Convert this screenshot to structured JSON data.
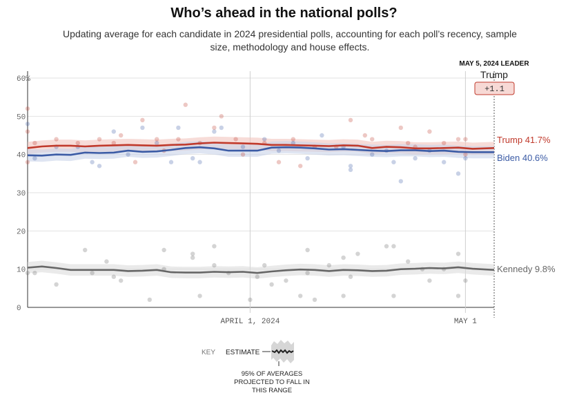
{
  "header": {
    "title": "Who’s ahead in the national polls?",
    "subtitle": "Updating average for each candidate in 2024 presidential polls, accounting for each poll’s recency, sample size, methodology and house effects."
  },
  "leader_box": {
    "label": "MAY 5, 2024 LEADER",
    "name": "Trump",
    "margin": "+1.1"
  },
  "key": {
    "label": "KEY",
    "estimate": "ESTIMATE",
    "range_note_lines": [
      "95% OF AVERAGES",
      "PROJECTED TO FALL IN",
      "THIS RANGE"
    ]
  },
  "colors": {
    "trump": "#c0392b",
    "biden": "#3b5ba5",
    "kennedy": "#666666"
  },
  "chart_data": {
    "type": "line",
    "title": "Who’s ahead in the national polls?",
    "x_start": "2024-03-01",
    "x_end": "2024-05-05",
    "ylim": [
      0,
      60
    ],
    "y_ticks": [
      {
        "value": 0,
        "label": "0"
      },
      {
        "value": 10,
        "label": "10"
      },
      {
        "value": 20,
        "label": "20"
      },
      {
        "value": 30,
        "label": "30"
      },
      {
        "value": 40,
        "label": "40"
      },
      {
        "value": 50,
        "label": "50"
      },
      {
        "value": 60,
        "label": "60%"
      }
    ],
    "x_ticks": [
      {
        "date": "2024-04-01",
        "label": "APRIL 1, 2024"
      },
      {
        "date": "2024-05-01",
        "label": "MAY 1"
      }
    ],
    "grid": true,
    "series": [
      {
        "name": "Trump",
        "end_label": "Trump 41.7%",
        "color": "#c0392b",
        "band_color": "#f2c4be",
        "band_halfwidth": 1.6,
        "points": [
          [
            "2024-03-01",
            41.7
          ],
          [
            "2024-03-03",
            42.1
          ],
          [
            "2024-03-05",
            42.3
          ],
          [
            "2024-03-07",
            42.3
          ],
          [
            "2024-03-09",
            42.1
          ],
          [
            "2024-03-11",
            42.3
          ],
          [
            "2024-03-13",
            42.4
          ],
          [
            "2024-03-15",
            42.5
          ],
          [
            "2024-03-17",
            42.4
          ],
          [
            "2024-03-19",
            42.3
          ],
          [
            "2024-03-21",
            42.5
          ],
          [
            "2024-03-23",
            42.6
          ],
          [
            "2024-03-25",
            42.9
          ],
          [
            "2024-03-27",
            43.1
          ],
          [
            "2024-03-29",
            43.0
          ],
          [
            "2024-03-31",
            42.9
          ],
          [
            "2024-04-02",
            42.8
          ],
          [
            "2024-04-04",
            42.5
          ],
          [
            "2024-04-06",
            42.5
          ],
          [
            "2024-04-08",
            42.4
          ],
          [
            "2024-04-10",
            42.3
          ],
          [
            "2024-04-12",
            42.2
          ],
          [
            "2024-04-14",
            42.4
          ],
          [
            "2024-04-16",
            42.3
          ],
          [
            "2024-04-18",
            41.7
          ],
          [
            "2024-04-20",
            42.0
          ],
          [
            "2024-04-22",
            41.9
          ],
          [
            "2024-04-24",
            41.6
          ],
          [
            "2024-04-26",
            41.6
          ],
          [
            "2024-04-28",
            41.7
          ],
          [
            "2024-04-30",
            41.8
          ],
          [
            "2024-05-02",
            41.5
          ],
          [
            "2024-05-05",
            41.7
          ]
        ]
      },
      {
        "name": "Biden",
        "end_label": "Biden 40.6%",
        "color": "#3b5ba5",
        "band_color": "#c9d3ea",
        "band_halfwidth": 1.6,
        "points": [
          [
            "2024-03-01",
            39.8
          ],
          [
            "2024-03-03",
            39.7
          ],
          [
            "2024-03-05",
            40.0
          ],
          [
            "2024-03-07",
            39.9
          ],
          [
            "2024-03-09",
            40.5
          ],
          [
            "2024-03-11",
            40.4
          ],
          [
            "2024-03-13",
            40.5
          ],
          [
            "2024-03-15",
            41.0
          ],
          [
            "2024-03-17",
            40.7
          ],
          [
            "2024-03-19",
            40.8
          ],
          [
            "2024-03-21",
            41.2
          ],
          [
            "2024-03-23",
            41.7
          ],
          [
            "2024-03-25",
            41.9
          ],
          [
            "2024-03-27",
            41.6
          ],
          [
            "2024-03-29",
            41.0
          ],
          [
            "2024-03-31",
            41.0
          ],
          [
            "2024-04-02",
            41.0
          ],
          [
            "2024-04-04",
            41.8
          ],
          [
            "2024-04-06",
            41.9
          ],
          [
            "2024-04-08",
            41.8
          ],
          [
            "2024-04-10",
            41.6
          ],
          [
            "2024-04-12",
            41.3
          ],
          [
            "2024-04-14",
            41.4
          ],
          [
            "2024-04-16",
            41.2
          ],
          [
            "2024-04-18",
            41.0
          ],
          [
            "2024-04-20",
            40.9
          ],
          [
            "2024-04-22",
            41.1
          ],
          [
            "2024-04-24",
            41.1
          ],
          [
            "2024-04-26",
            40.9
          ],
          [
            "2024-04-28",
            41.0
          ],
          [
            "2024-04-30",
            40.7
          ],
          [
            "2024-05-02",
            40.6
          ],
          [
            "2024-05-05",
            40.6
          ]
        ]
      },
      {
        "name": "Kennedy",
        "end_label": "Kennedy 9.8%",
        "color": "#666666",
        "band_color": "#dcdcdc",
        "band_halfwidth": 1.5,
        "points": [
          [
            "2024-03-01",
            10.4
          ],
          [
            "2024-03-03",
            10.7
          ],
          [
            "2024-03-05",
            10.3
          ],
          [
            "2024-03-07",
            9.8
          ],
          [
            "2024-03-09",
            9.8
          ],
          [
            "2024-03-11",
            9.8
          ],
          [
            "2024-03-13",
            9.8
          ],
          [
            "2024-03-15",
            9.5
          ],
          [
            "2024-03-17",
            9.6
          ],
          [
            "2024-03-19",
            9.8
          ],
          [
            "2024-03-21",
            9.2
          ],
          [
            "2024-03-23",
            9.1
          ],
          [
            "2024-03-25",
            9.1
          ],
          [
            "2024-03-27",
            9.3
          ],
          [
            "2024-03-29",
            9.2
          ],
          [
            "2024-03-31",
            9.3
          ],
          [
            "2024-04-02",
            9.0
          ],
          [
            "2024-04-04",
            9.4
          ],
          [
            "2024-04-06",
            9.7
          ],
          [
            "2024-04-08",
            9.9
          ],
          [
            "2024-04-10",
            9.8
          ],
          [
            "2024-04-12",
            9.5
          ],
          [
            "2024-04-14",
            9.8
          ],
          [
            "2024-04-16",
            9.7
          ],
          [
            "2024-04-18",
            9.5
          ],
          [
            "2024-04-20",
            9.6
          ],
          [
            "2024-04-22",
            10.0
          ],
          [
            "2024-04-24",
            10.1
          ],
          [
            "2024-04-26",
            10.3
          ],
          [
            "2024-04-28",
            10.2
          ],
          [
            "2024-04-30",
            10.5
          ],
          [
            "2024-05-02",
            10.1
          ],
          [
            "2024-05-05",
            9.8
          ]
        ]
      }
    ],
    "poll_dots": [
      {
        "series": "Trump",
        "points": [
          [
            "2024-03-01",
            52
          ],
          [
            "2024-03-01",
            46
          ],
          [
            "2024-03-01",
            38
          ],
          [
            "2024-03-02",
            43
          ],
          [
            "2024-03-05",
            44
          ],
          [
            "2024-03-08",
            43
          ],
          [
            "2024-03-11",
            44
          ],
          [
            "2024-03-13",
            43
          ],
          [
            "2024-03-14",
            45
          ],
          [
            "2024-03-16",
            38
          ],
          [
            "2024-03-17",
            49
          ],
          [
            "2024-03-19",
            44
          ],
          [
            "2024-03-20",
            41
          ],
          [
            "2024-03-22",
            44
          ],
          [
            "2024-03-23",
            53
          ],
          [
            "2024-03-25",
            43
          ],
          [
            "2024-03-27",
            47
          ],
          [
            "2024-03-28",
            50
          ],
          [
            "2024-03-30",
            44
          ],
          [
            "2024-03-31",
            40
          ],
          [
            "2024-04-03",
            43
          ],
          [
            "2024-04-05",
            38
          ],
          [
            "2024-04-07",
            44
          ],
          [
            "2024-04-08",
            37
          ],
          [
            "2024-04-10",
            42
          ],
          [
            "2024-04-13",
            42
          ],
          [
            "2024-04-15",
            49
          ],
          [
            "2024-04-17",
            45
          ],
          [
            "2024-04-18",
            44
          ],
          [
            "2024-04-22",
            47
          ],
          [
            "2024-04-23",
            43
          ],
          [
            "2024-04-24",
            42
          ],
          [
            "2024-04-26",
            46
          ],
          [
            "2024-04-28",
            43
          ],
          [
            "2024-04-30",
            44
          ],
          [
            "2024-05-01",
            44
          ],
          [
            "2024-05-01",
            40
          ]
        ]
      },
      {
        "series": "Biden",
        "points": [
          [
            "2024-03-01",
            48
          ],
          [
            "2024-03-02",
            39
          ],
          [
            "2024-03-05",
            42
          ],
          [
            "2024-03-08",
            42
          ],
          [
            "2024-03-10",
            38
          ],
          [
            "2024-03-11",
            37
          ],
          [
            "2024-03-13",
            46
          ],
          [
            "2024-03-15",
            40
          ],
          [
            "2024-03-17",
            47
          ],
          [
            "2024-03-19",
            43
          ],
          [
            "2024-03-21",
            38
          ],
          [
            "2024-03-22",
            47
          ],
          [
            "2024-03-24",
            39
          ],
          [
            "2024-03-25",
            38
          ],
          [
            "2024-03-27",
            46
          ],
          [
            "2024-03-28",
            47
          ],
          [
            "2024-03-31",
            42
          ],
          [
            "2024-04-03",
            44
          ],
          [
            "2024-04-05",
            41
          ],
          [
            "2024-04-07",
            43
          ],
          [
            "2024-04-09",
            39
          ],
          [
            "2024-04-11",
            45
          ],
          [
            "2024-04-14",
            42
          ],
          [
            "2024-04-15",
            37
          ],
          [
            "2024-04-15",
            36
          ],
          [
            "2024-04-18",
            40
          ],
          [
            "2024-04-20",
            41
          ],
          [
            "2024-04-21",
            38
          ],
          [
            "2024-04-22",
            33
          ],
          [
            "2024-04-24",
            39
          ],
          [
            "2024-04-26",
            41
          ],
          [
            "2024-04-28",
            38
          ],
          [
            "2024-04-30",
            35
          ],
          [
            "2024-05-01",
            39
          ]
        ]
      },
      {
        "series": "Kennedy",
        "points": [
          [
            "2024-03-01",
            9
          ],
          [
            "2024-03-02",
            9
          ],
          [
            "2024-03-05",
            6
          ],
          [
            "2024-03-09",
            15
          ],
          [
            "2024-03-10",
            9
          ],
          [
            "2024-03-12",
            12
          ],
          [
            "2024-03-13",
            8
          ],
          [
            "2024-03-14",
            7
          ],
          [
            "2024-03-18",
            2
          ],
          [
            "2024-03-20",
            15
          ],
          [
            "2024-03-20",
            10
          ],
          [
            "2024-03-24",
            14
          ],
          [
            "2024-03-24",
            13
          ],
          [
            "2024-03-25",
            3
          ],
          [
            "2024-03-27",
            16
          ],
          [
            "2024-03-27",
            11
          ],
          [
            "2024-03-29",
            9
          ],
          [
            "2024-04-01",
            2
          ],
          [
            "2024-04-02",
            8
          ],
          [
            "2024-04-03",
            11
          ],
          [
            "2024-04-04",
            6
          ],
          [
            "2024-04-06",
            7
          ],
          [
            "2024-04-08",
            3
          ],
          [
            "2024-04-09",
            15
          ],
          [
            "2024-04-09",
            9
          ],
          [
            "2024-04-10",
            2
          ],
          [
            "2024-04-12",
            11
          ],
          [
            "2024-04-14",
            3
          ],
          [
            "2024-04-14",
            13
          ],
          [
            "2024-04-15",
            8
          ],
          [
            "2024-04-16",
            14
          ],
          [
            "2024-04-20",
            16
          ],
          [
            "2024-04-21",
            3
          ],
          [
            "2024-04-21",
            16
          ],
          [
            "2024-04-23",
            12
          ],
          [
            "2024-04-25",
            10
          ],
          [
            "2024-04-26",
            7
          ],
          [
            "2024-04-28",
            10
          ],
          [
            "2024-04-30",
            3
          ],
          [
            "2024-04-30",
            14
          ],
          [
            "2024-05-01",
            7
          ]
        ]
      }
    ]
  }
}
